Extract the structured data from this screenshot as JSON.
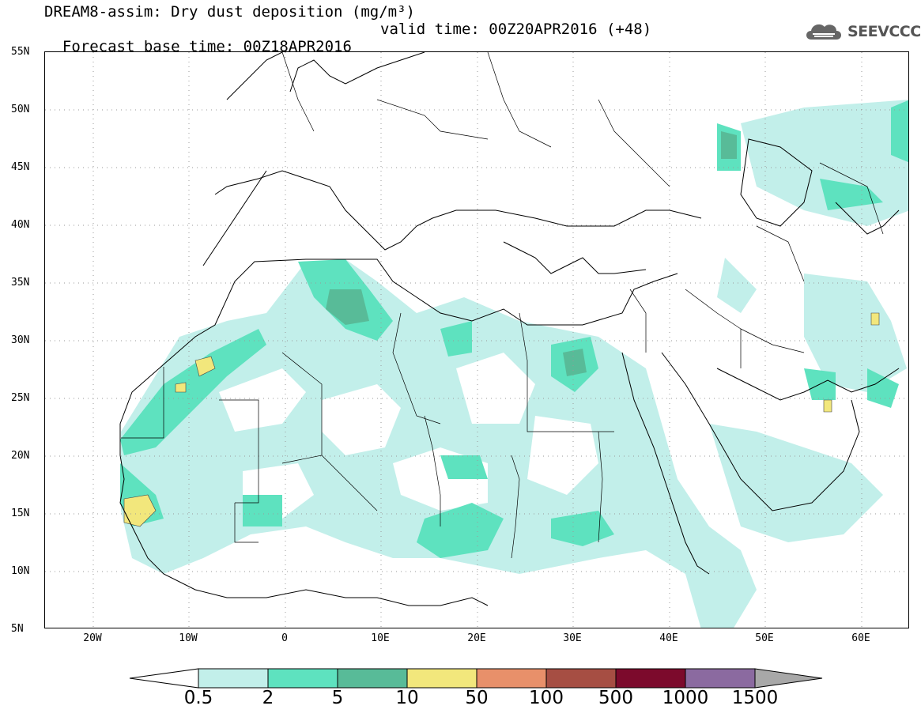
{
  "header": {
    "title_line1": "DREAM8-assim: Dry dust deposition (mg/m³)",
    "title_line2_left": "Forecast base time: 00Z18APR2016",
    "title_line2_right": "valid time: 00Z20APR2016 (+48)",
    "logo_text": "SEEVCCC"
  },
  "map": {
    "projection": "lat-lon",
    "lon_range": [
      -25,
      65
    ],
    "lat_range": [
      5,
      55
    ],
    "y_axis_labels": [
      "55N",
      "50N",
      "45N",
      "40N",
      "35N",
      "30N",
      "25N",
      "20N",
      "15N",
      "10N",
      "5N"
    ],
    "x_axis_labels": [
      "20W",
      "10W",
      "0",
      "10E",
      "20E",
      "30E",
      "40E",
      "50E",
      "60E"
    ],
    "gridlines": "dotted"
  },
  "legend": {
    "thresholds": [
      "0.5",
      "2",
      "5",
      "10",
      "50",
      "100",
      "500",
      "1000",
      "1500"
    ],
    "colors": [
      "#c2efea",
      "#5ee2bf",
      "#58bb98",
      "#f2e77c",
      "#e8906a",
      "#a64e43",
      "#7c0a2c",
      "#8b6aa0",
      "#a8a8a8"
    ],
    "under_color": "#ffffff",
    "over_color": "#a8a8a8"
  }
}
